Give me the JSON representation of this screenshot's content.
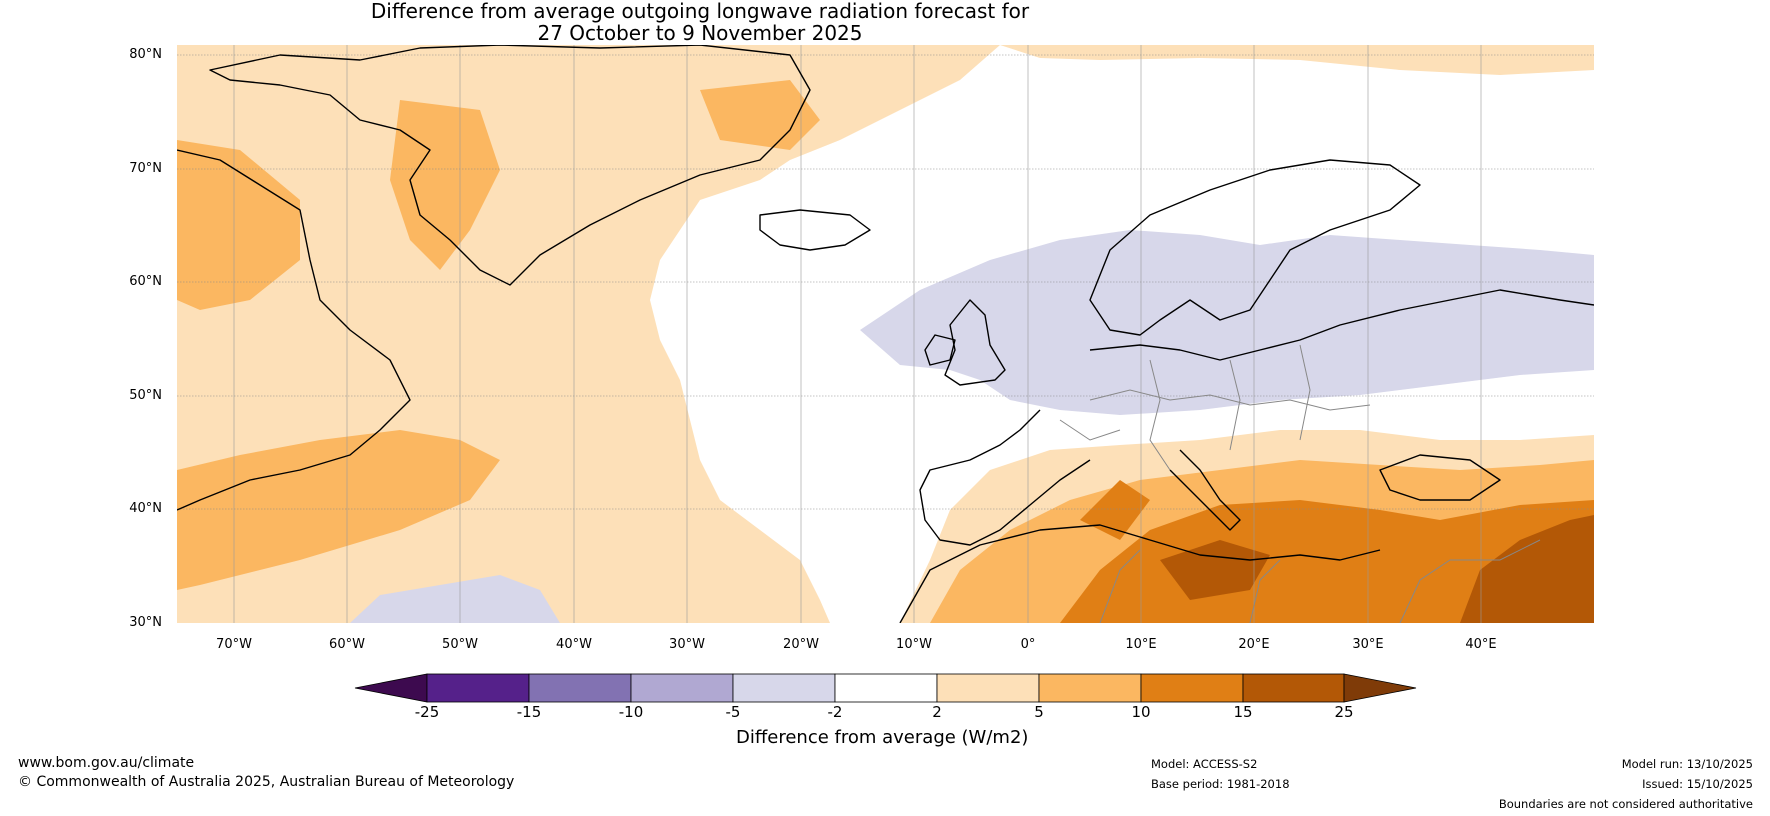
{
  "title": {
    "line1": "Difference from average outgoing longwave radiation forecast for",
    "line2": "27 October to 9 November 2025"
  },
  "map": {
    "lat_labels": [
      "80°N",
      "70°N",
      "60°N",
      "50°N",
      "40°N",
      "30°N"
    ],
    "lon_labels": [
      "70°W",
      "60°W",
      "50°W",
      "40°W",
      "30°W",
      "20°W",
      "10°W",
      "0°",
      "10°E",
      "20°E",
      "30°E",
      "40°E"
    ],
    "lat_range": [
      30,
      81
    ],
    "lon_range": [
      -75,
      50
    ],
    "regions": [
      {
        "name": "Greenland and northern Canada",
        "category": "2 to 5"
      },
      {
        "name": "North Atlantic near Iceland",
        "category": "-2 to 2"
      },
      {
        "name": "UK, Scandinavia and northern Europe",
        "category": "-5 to -2"
      },
      {
        "name": "Southern Europe and North Africa",
        "category": "5 to 10"
      },
      {
        "name": "Eastern Mediterranean",
        "category": "10 to 15"
      },
      {
        "name": "Middle East",
        "category": "15 to 25"
      }
    ]
  },
  "colorbar": {
    "label": "Difference from average (W/m2)",
    "ticks": [
      "-25",
      "-15",
      "-10",
      "-5",
      "-2",
      "2",
      "5",
      "10",
      "15",
      "25"
    ],
    "colors": [
      "#3d0a4f",
      "#55218a",
      "#8272b2",
      "#b0a8d2",
      "#d7d7ea",
      "#ffffff",
      "#fde0b8",
      "#fbb761",
      "#e07f15",
      "#b35806",
      "#7f3b08"
    ]
  },
  "footer": {
    "website": "www.bom.gov.au/climate",
    "copyright": "© Commonwealth of Australia 2025, Australian Bureau of Meteorology",
    "model": "Model: ACCESS-S2",
    "base_period": "Base period: 1981-2018",
    "model_run": "Model run: 13/10/2025",
    "issued": "Issued: 15/10/2025",
    "disclaimer": "Boundaries are not considered authoritative"
  }
}
